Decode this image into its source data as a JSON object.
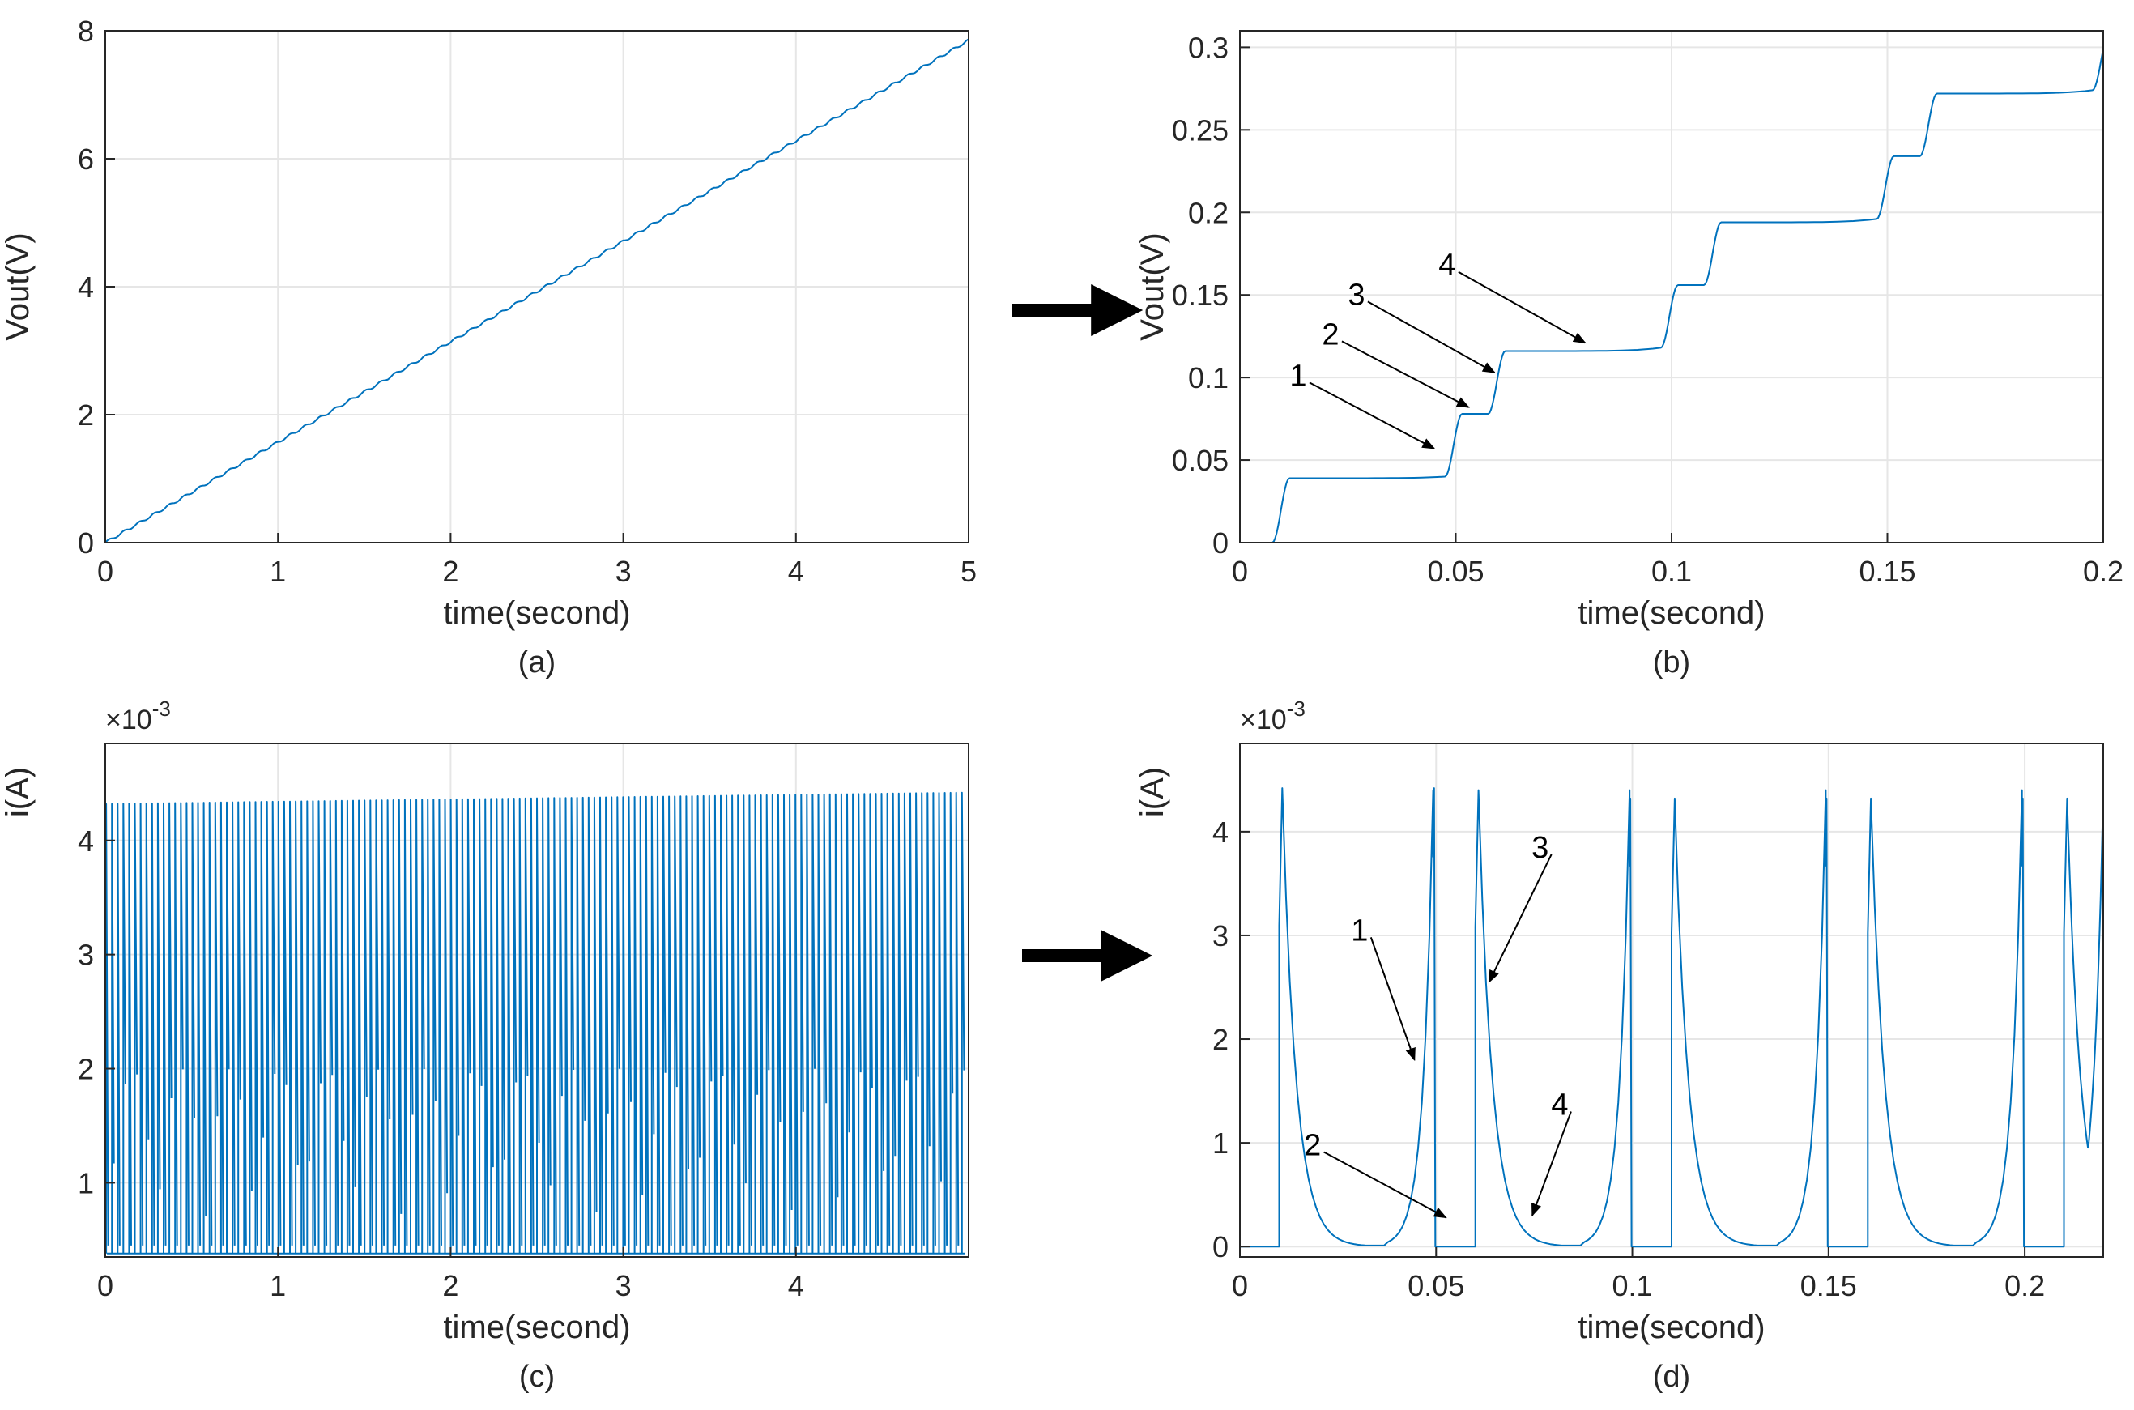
{
  "colors": {
    "line": "#0072BD",
    "grid": "#e6e6e6",
    "axis": "#262626",
    "arrow": "#000000"
  },
  "chart_data": [
    {
      "id": "a",
      "type": "line",
      "caption": "(a)",
      "xlabel": "time(second)",
      "ylabel": "Vout(V)",
      "xlim": [
        0,
        5
      ],
      "ylim": [
        0,
        8
      ],
      "xticks": [
        0,
        1,
        2,
        3,
        4,
        5
      ],
      "xtick_labels": [
        "0",
        "1",
        "2",
        "3",
        "4",
        "5"
      ],
      "yticks": [
        0,
        2,
        4,
        6,
        8
      ],
      "ytick_labels": [
        "0",
        "2",
        "4",
        "6",
        "8"
      ],
      "exponent": "",
      "series": [
        {
          "name": "Vout",
          "x": [
            0,
            5
          ],
          "y": [
            0,
            7.85
          ]
        }
      ],
      "annotations": []
    },
    {
      "id": "b",
      "type": "line",
      "caption": "(b)",
      "xlabel": "time(second)",
      "ylabel": "Vout(V)",
      "xlim": [
        0,
        0.2
      ],
      "ylim": [
        0,
        0.31
      ],
      "xticks": [
        0,
        0.05,
        0.1,
        0.15,
        0.2
      ],
      "xtick_labels": [
        "0",
        "0.05",
        "0.1",
        "0.15",
        "0.2"
      ],
      "yticks": [
        0,
        0.05,
        0.1,
        0.15,
        0.2,
        0.25,
        0.3
      ],
      "ytick_labels": [
        "0",
        "0.05",
        "0.1",
        "0.15",
        "0.2",
        "0.25",
        "0.3"
      ],
      "exponent": "",
      "series": [
        {
          "name": "Vout",
          "x": [
            0,
            0.2
          ],
          "y": [
            0,
            0.31
          ]
        }
      ],
      "steps": [
        {
          "t": 0.01,
          "v0": 0,
          "v1": 0.039
        },
        {
          "t": 0.05,
          "v0": 0.04,
          "v1": 0.078
        },
        {
          "t": 0.06,
          "v0": 0.078,
          "v1": 0.116
        },
        {
          "t": 0.1,
          "v0": 0.118,
          "v1": 0.156
        },
        {
          "t": 0.11,
          "v0": 0.156,
          "v1": 0.194
        },
        {
          "t": 0.15,
          "v0": 0.196,
          "v1": 0.234
        },
        {
          "t": 0.16,
          "v0": 0.234,
          "v1": 0.272
        },
        {
          "t": 0.2,
          "v0": 0.274,
          "v1": 0.31
        }
      ],
      "annotations": [
        {
          "text": "1",
          "tx": 0.0135,
          "ty": 0.095,
          "hx": 0.045,
          "hy": 0.057
        },
        {
          "text": "2",
          "tx": 0.021,
          "ty": 0.12,
          "hx": 0.053,
          "hy": 0.082
        },
        {
          "text": "3",
          "tx": 0.027,
          "ty": 0.144,
          "hx": 0.059,
          "hy": 0.103
        },
        {
          "text": "4",
          "tx": 0.048,
          "ty": 0.162,
          "hx": 0.08,
          "hy": 0.121
        }
      ]
    },
    {
      "id": "c",
      "type": "line",
      "caption": "(c)",
      "xlabel": "time(second)",
      "ylabel": "i(A)",
      "xlim": [
        0,
        5
      ],
      "ylim": [
        0.35,
        4.85
      ],
      "xticks": [
        0,
        1,
        2,
        3,
        4
      ],
      "xtick_labels": [
        "0",
        "1",
        "2",
        "3",
        "4"
      ],
      "yticks": [
        1,
        2,
        3,
        4
      ],
      "ytick_labels": [
        "1",
        "2",
        "3",
        "4"
      ],
      "exponent": "×10",
      "exponent_power": "-3",
      "series": [
        {
          "name": "i",
          "x": [
            0,
            5
          ],
          "y": [
            0.35,
            4.4
          ]
        }
      ],
      "annotations": []
    },
    {
      "id": "d",
      "type": "line",
      "caption": "(d)",
      "xlabel": "time(second)",
      "ylabel": "i(A)",
      "xlim": [
        0,
        0.22
      ],
      "ylim": [
        -0.1,
        4.85
      ],
      "xticks": [
        0,
        0.05,
        0.1,
        0.15,
        0.2
      ],
      "xtick_labels": [
        "0",
        "0.05",
        "0.1",
        "0.15",
        "0.2"
      ],
      "yticks": [
        0,
        1,
        2,
        3,
        4
      ],
      "ytick_labels": [
        "0",
        "1",
        "2",
        "3",
        "4"
      ],
      "exponent": "×10",
      "exponent_power": "-3",
      "series": [
        {
          "name": "i",
          "x": [
            0,
            0.22
          ],
          "y": [
            0,
            4.43
          ]
        }
      ],
      "pulses": [
        {
          "start": 0.01,
          "peak": 0.0108,
          "end": 0.04925,
          "peakval": 4.42,
          "kind": "fall"
        },
        {
          "start": 0.04925,
          "peak": 0.0495,
          "end": 0.0505,
          "peakval": 4.42,
          "kind": "rise"
        },
        {
          "start": 0.06,
          "peak": 0.0608,
          "end": 0.0993,
          "peakval": 4.4,
          "kind": "fall"
        },
        {
          "start": 0.0993,
          "peak": 0.0995,
          "end": 0.1005,
          "peakval": 4.32,
          "kind": "rise"
        },
        {
          "start": 0.11,
          "peak": 0.1108,
          "end": 0.1493,
          "peakval": 4.32,
          "kind": "fall"
        },
        {
          "start": 0.1493,
          "peak": 0.1495,
          "end": 0.1505,
          "peakval": 4.32,
          "kind": "rise"
        },
        {
          "start": 0.16,
          "peak": 0.1608,
          "end": 0.1993,
          "peakval": 4.32,
          "kind": "fall"
        },
        {
          "start": 0.1993,
          "peak": 0.1995,
          "end": 0.2005,
          "peakval": 4.32,
          "kind": "rise"
        },
        {
          "start": 0.21,
          "peak": 0.2108,
          "end": 0.22,
          "peakval": 4.32,
          "kind": "fall"
        }
      ],
      "annotations": [
        {
          "text": "1",
          "tx": 0.0305,
          "ty": 2.95,
          "hx": 0.0445,
          "hy": 1.8
        },
        {
          "text": "2",
          "tx": 0.0185,
          "ty": 0.88,
          "hx": 0.0525,
          "hy": 0.28
        },
        {
          "text": "3",
          "tx": 0.0765,
          "ty": 3.75,
          "hx": 0.0635,
          "hy": 2.55
        },
        {
          "text": "4",
          "tx": 0.0815,
          "ty": 1.27,
          "hx": 0.0745,
          "hy": 0.3
        }
      ]
    }
  ]
}
